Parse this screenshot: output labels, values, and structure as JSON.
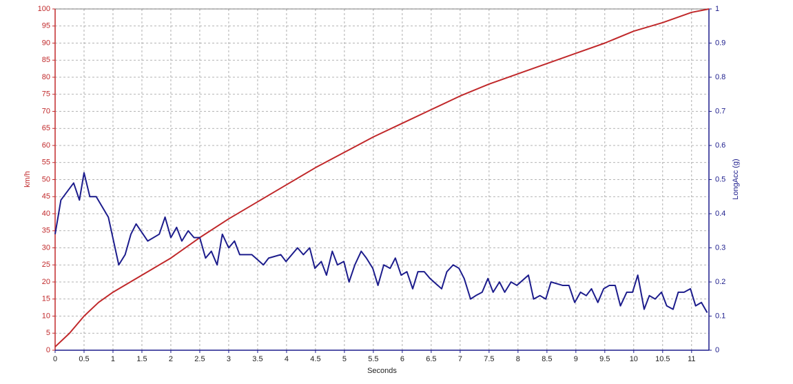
{
  "chart_data": {
    "type": "line",
    "x_label": "Seconds",
    "y_label": "km/h",
    "y2_label": "LongAcc (g)",
    "xlim": [
      0,
      11.3
    ],
    "xticks": [
      0,
      0.5,
      1,
      1.5,
      2,
      2.5,
      3,
      3.5,
      4,
      4.5,
      5,
      5.5,
      6,
      6.5,
      7,
      7.5,
      8,
      8.5,
      9,
      9.5,
      10,
      10.5,
      11
    ],
    "ylim": [
      0,
      100
    ],
    "yticks": [
      0,
      5,
      10,
      15,
      20,
      25,
      30,
      35,
      40,
      45,
      50,
      55,
      60,
      65,
      70,
      75,
      80,
      85,
      90,
      95,
      100
    ],
    "y2lim": [
      0,
      1
    ],
    "y2ticks": [
      0,
      0.1,
      0.2,
      0.3,
      0.4,
      0.5,
      0.6,
      0.7,
      0.8,
      0.9,
      1
    ],
    "grid": true,
    "y_color": "#c0282a",
    "y2_color": "#1c1c8c",
    "series": [
      {
        "name": "km/h",
        "color": "#c0282a",
        "x": [
          0,
          0.25,
          0.5,
          0.75,
          1,
          1.25,
          1.5,
          2,
          2.5,
          3,
          3.5,
          4,
          4.5,
          5,
          5.5,
          6,
          6.5,
          7,
          7.5,
          8,
          8.5,
          9,
          9.5,
          10,
          10.5,
          11,
          11.3
        ],
        "values": [
          1,
          5,
          10,
          14,
          17,
          19.5,
          22,
          27,
          33,
          38.5,
          43.5,
          48.5,
          53.5,
          58,
          62.5,
          66.5,
          70.5,
          74.5,
          78,
          81,
          84,
          87,
          90,
          93.5,
          96,
          99,
          100
        ]
      },
      {
        "name": "LongAcc (g)",
        "color": "#1c1c8c",
        "axis": "y2",
        "x": [
          0,
          0.1,
          0.32,
          0.42,
          0.5,
          0.6,
          0.71,
          0.92,
          1.1,
          1.21,
          1.31,
          1.4,
          1.6,
          1.8,
          1.9,
          2.0,
          2.1,
          2.19,
          2.3,
          2.4,
          2.5,
          2.6,
          2.7,
          2.8,
          2.89,
          3.0,
          3.1,
          3.19,
          3.4,
          3.6,
          3.69,
          3.9,
          3.99,
          4.19,
          4.29,
          4.4,
          4.49,
          4.6,
          4.69,
          4.79,
          4.88,
          4.99,
          5.08,
          5.18,
          5.29,
          5.38,
          5.49,
          5.58,
          5.68,
          5.79,
          5.88,
          5.98,
          6.08,
          6.18,
          6.27,
          6.38,
          6.48,
          6.68,
          6.77,
          6.88,
          6.98,
          7.07,
          7.18,
          7.27,
          7.38,
          7.48,
          7.57,
          7.68,
          7.77,
          7.88,
          7.98,
          8.18,
          8.27,
          8.38,
          8.48,
          8.57,
          8.77,
          8.88,
          8.98,
          9.08,
          9.18,
          9.27,
          9.38,
          9.48,
          9.58,
          9.68,
          9.77,
          9.88,
          9.98,
          10.07,
          10.18,
          10.27,
          10.37,
          10.48,
          10.57,
          10.68,
          10.77,
          10.87,
          10.98,
          11.07,
          11.17,
          11.27
        ],
        "values": [
          0.34,
          0.44,
          0.49,
          0.44,
          0.52,
          0.45,
          0.45,
          0.39,
          0.25,
          0.28,
          0.34,
          0.37,
          0.32,
          0.34,
          0.39,
          0.33,
          0.36,
          0.32,
          0.35,
          0.33,
          0.33,
          0.27,
          0.29,
          0.25,
          0.34,
          0.3,
          0.32,
          0.28,
          0.28,
          0.25,
          0.27,
          0.28,
          0.26,
          0.3,
          0.28,
          0.3,
          0.24,
          0.26,
          0.22,
          0.29,
          0.25,
          0.26,
          0.2,
          0.25,
          0.29,
          0.27,
          0.24,
          0.19,
          0.25,
          0.24,
          0.27,
          0.22,
          0.23,
          0.18,
          0.23,
          0.23,
          0.21,
          0.18,
          0.23,
          0.25,
          0.24,
          0.21,
          0.15,
          0.16,
          0.17,
          0.21,
          0.17,
          0.2,
          0.17,
          0.2,
          0.19,
          0.22,
          0.15,
          0.16,
          0.15,
          0.2,
          0.19,
          0.19,
          0.14,
          0.17,
          0.16,
          0.18,
          0.14,
          0.18,
          0.19,
          0.19,
          0.13,
          0.17,
          0.17,
          0.22,
          0.12,
          0.16,
          0.15,
          0.17,
          0.13,
          0.12,
          0.17,
          0.17,
          0.18,
          0.13,
          0.14,
          0.11
        ]
      }
    ]
  }
}
